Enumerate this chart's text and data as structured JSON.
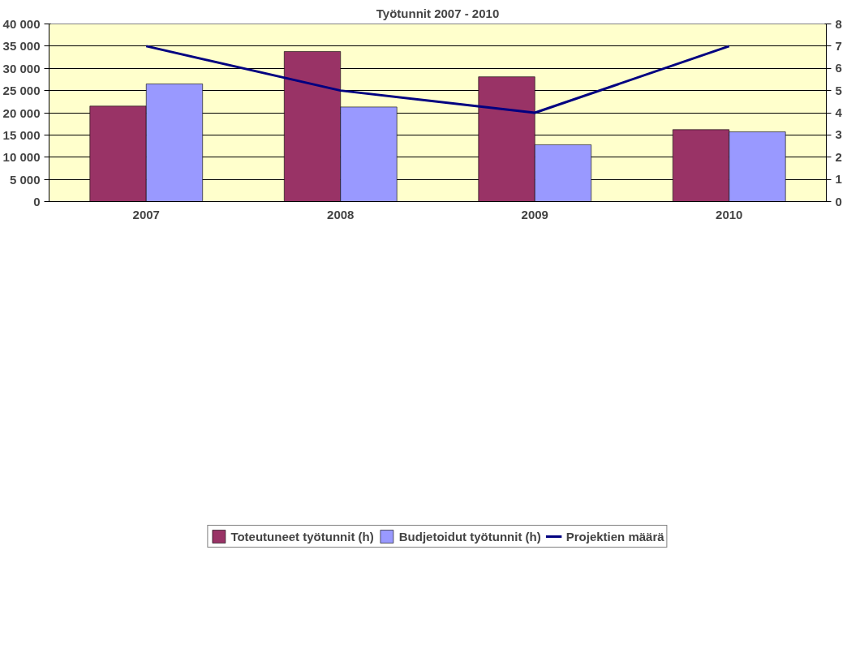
{
  "chart_data": {
    "type": "bar",
    "title": "Työtunnit 2007 - 2010",
    "categories": [
      "2007",
      "2008",
      "2009",
      "2010"
    ],
    "series": [
      {
        "name": "Toteutuneet työtunnit (h)",
        "color": "#993366",
        "values": [
          21500,
          33800,
          28100,
          16200
        ]
      },
      {
        "name": "Budjetoidut työtunnit (h)",
        "color": "#9999ff",
        "values": [
          26500,
          21300,
          12800,
          15700
        ]
      },
      {
        "name": "Projektien määrä",
        "color": "#000080",
        "type": "line",
        "axis": "y2",
        "values": [
          7,
          5,
          4,
          7
        ]
      }
    ],
    "ylim": [
      0,
      40000
    ],
    "yticks": [
      {
        "value": 0,
        "label": "0"
      },
      {
        "value": 5000,
        "label": "5 000"
      },
      {
        "value": 10000,
        "label": "10 000"
      },
      {
        "value": 15000,
        "label": "15 000"
      },
      {
        "value": 20000,
        "label": "20 000"
      },
      {
        "value": 25000,
        "label": "25 000"
      },
      {
        "value": 30000,
        "label": "30 000"
      },
      {
        "value": 35000,
        "label": "35 000"
      },
      {
        "value": 40000,
        "label": "40 000"
      }
    ],
    "y2lim": [
      0,
      8
    ],
    "y2ticks": [
      0,
      1,
      2,
      3,
      4,
      5,
      6,
      7,
      8
    ],
    "grid": "y",
    "legend": "bottom",
    "marker": "none",
    "line_style": "solid"
  }
}
